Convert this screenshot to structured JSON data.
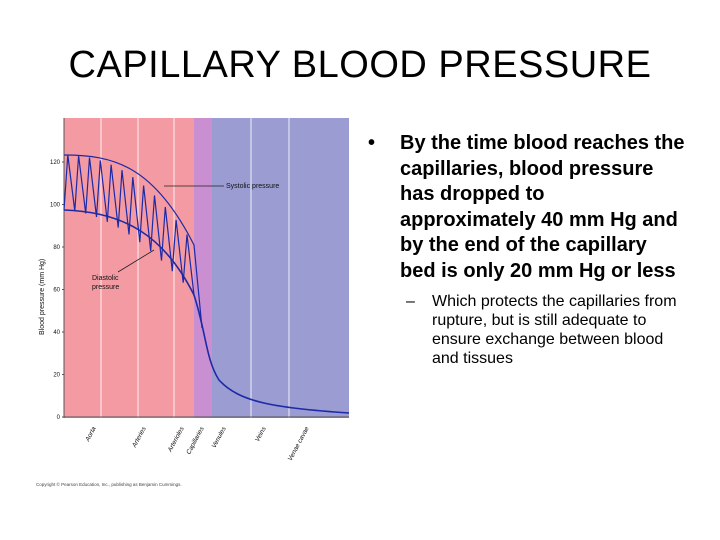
{
  "slide": {
    "title": "CAPILLARY BLOOD PRESSURE"
  },
  "figure": {
    "ylabel": "Blood pressure (mm Hg)",
    "yticks": [
      "120",
      "100",
      "80",
      "60",
      "40",
      "20",
      "0"
    ],
    "categories": [
      "Aorta",
      "Arteries",
      "Arterioles",
      "Capillaries",
      "Venules",
      "Veins",
      "Venae cavae"
    ],
    "systolic_label": "Systolic pressure",
    "diastolic_label": "Diastolic pressure",
    "copyright": "Copyright © Pearson Education, Inc., publishing as Benjamin Cummings.",
    "colors": {
      "arterial": "#f49aa3",
      "capillary": "#c98fd0",
      "venous": "#9a9cd2",
      "curve": "#1c2aa6"
    }
  },
  "bullets": {
    "main": "By the time blood reaches the capillaries, blood pressure has dropped to approximately 40 mm Hg and by the end of the capillary bed is only 20 mm Hg or less",
    "sub": "Which protects the capillaries from rupture, but is still adequate to ensure exchange between blood and tissues"
  }
}
